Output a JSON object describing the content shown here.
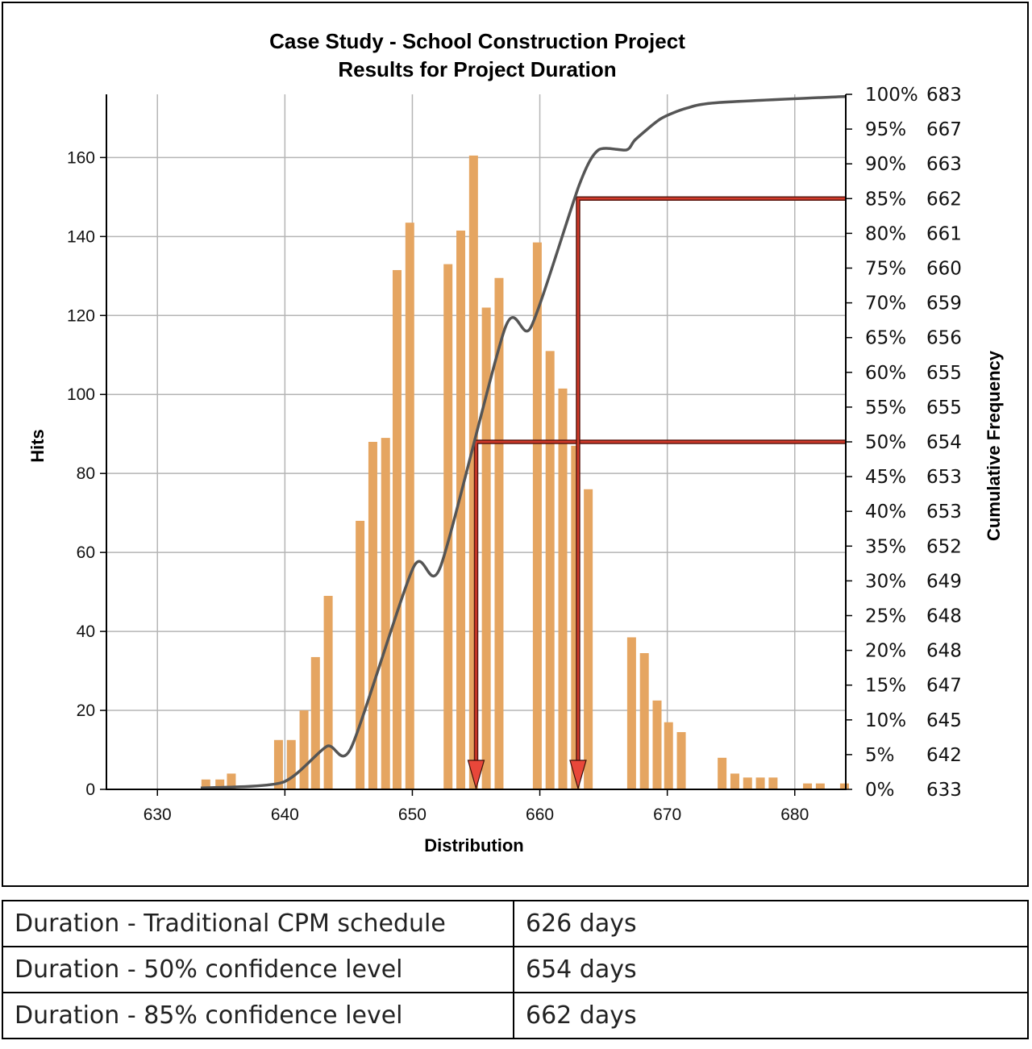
{
  "chart_data": {
    "type": "bar",
    "title": "Case Study - School Construction Project",
    "subtitle": "Results for Project Duration",
    "xlabel": "Distribution",
    "ylabel": "Hits",
    "y2label": "Cumulative Frequency",
    "xlim": [
      626,
      684
    ],
    "ylim": [
      0,
      176
    ],
    "xticks": [
      630,
      640,
      650,
      660,
      670,
      680
    ],
    "yticks": [
      0,
      20,
      40,
      60,
      80,
      100,
      120,
      140,
      160
    ],
    "grid": true,
    "colors": {
      "bars": "#e5a561",
      "cumulative": "#555555",
      "markers": "#d23a2a"
    },
    "series": [
      {
        "type": "bar",
        "x": [
          633.8,
          634.9,
          635.8,
          639.5,
          640.5,
          641.5,
          642.4,
          643.4,
          645.9,
          646.9,
          647.9,
          648.8,
          649.8,
          652.8,
          653.8,
          654.8,
          655.8,
          656.8,
          659.8,
          660.8,
          661.8,
          662.8,
          663.8,
          667.2,
          668.2,
          669.2,
          670.1,
          671.1,
          674.3,
          675.3,
          676.3,
          677.3,
          678.3,
          681.0,
          682.0,
          683.9
        ],
        "values": [
          2.5,
          2.5,
          4,
          12.5,
          12.5,
          20,
          33.5,
          49,
          68,
          88,
          89,
          131.5,
          143.5,
          133,
          141.5,
          160.5,
          122,
          129.5,
          138.5,
          111,
          101.5,
          87,
          76,
          38.5,
          34.5,
          22.5,
          17,
          14.5,
          8,
          4,
          3,
          3,
          3,
          1.5,
          1.5,
          1.5
        ]
      },
      {
        "type": "line",
        "name": "Cumulative Frequency",
        "x": [
          633.4,
          639.8,
          643.3,
          645.2,
          650.1,
          652.2,
          657.3,
          659.3,
          663.1,
          664.6,
          666.8,
          667.5,
          669.5,
          671.5,
          673.9,
          684.0
        ],
        "values": [
          0.2,
          1.0,
          6.2,
          6.0,
          32.0,
          32.0,
          66.5,
          66.5,
          87.0,
          92.0,
          92.0,
          93.5,
          96.5,
          98.0,
          98.8,
          99.7
        ]
      }
    ],
    "y2_axis": {
      "percent_labels": [
        "0%",
        "5%",
        "10%",
        "15%",
        "20%",
        "25%",
        "30%",
        "35%",
        "40%",
        "45%",
        "50%",
        "55%",
        "60%",
        "65%",
        "70%",
        "75%",
        "80%",
        "85%",
        "90%",
        "95%",
        "100%"
      ],
      "duration_values": [
        "633",
        "642",
        "645",
        "647",
        "648",
        "648",
        "649",
        "652",
        "653",
        "653",
        "654",
        "655",
        "655",
        "656",
        "659",
        "660",
        "661",
        "662",
        "663",
        "667",
        "683"
      ]
    },
    "annotations": [
      {
        "type": "confidence-marker",
        "percent": 50,
        "value": 654,
        "x": 655
      },
      {
        "type": "confidence-marker",
        "percent": 85,
        "value": 662,
        "x": 663
      }
    ]
  },
  "table": {
    "rows": [
      {
        "label": "Duration - Traditional CPM schedule",
        "value": "626 days"
      },
      {
        "label": "Duration - 50% confidence level",
        "value": "654 days"
      },
      {
        "label": "Duration - 85% confidence level",
        "value": "662 days"
      }
    ]
  }
}
